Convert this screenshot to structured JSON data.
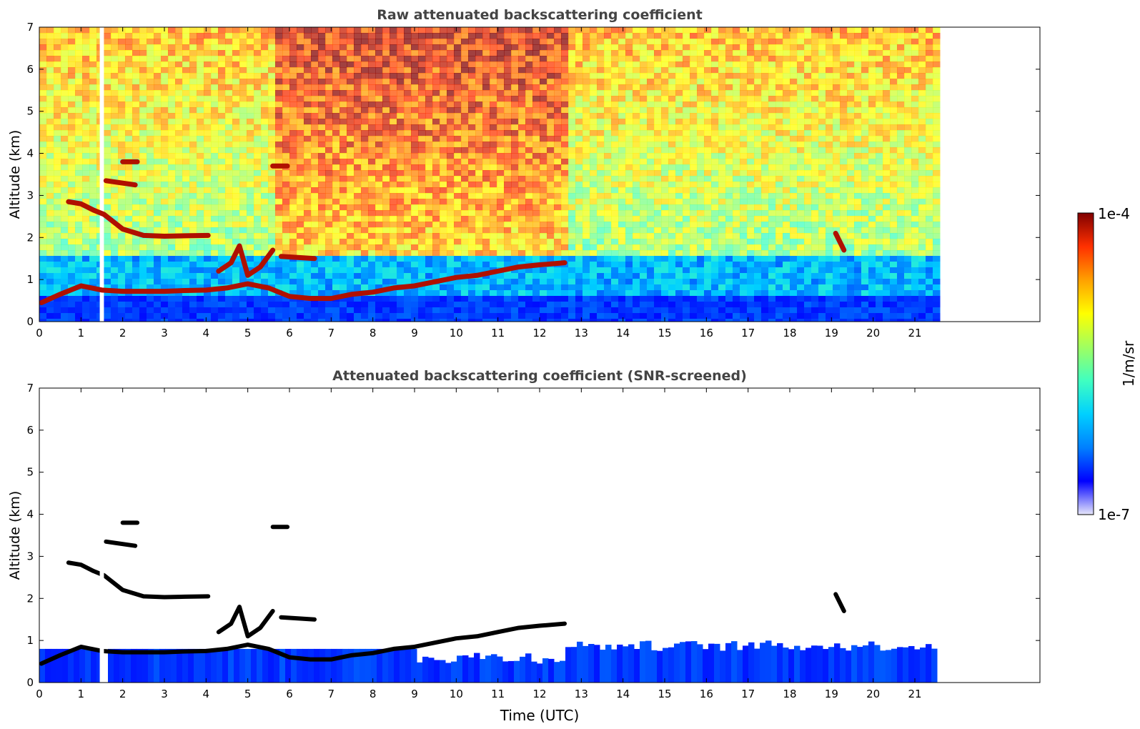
{
  "chart_data": [
    {
      "type": "heatmap",
      "title": "Raw attenuated backscattering coefficient",
      "xlabel": "",
      "ylabel": "Altitude (km)",
      "xlim": [
        0,
        24
      ],
      "ylim": [
        0,
        7
      ],
      "xticks": [
        "0",
        "1",
        "2",
        "3",
        "4",
        "5",
        "6",
        "7",
        "8",
        "9",
        "10",
        "11",
        "12",
        "13",
        "14",
        "15",
        "16",
        "17",
        "18",
        "19",
        "20",
        "21"
      ],
      "yticks": [
        "0",
        "1",
        "2",
        "3",
        "4",
        "5",
        "6",
        "7"
      ],
      "data_end_hour": 21.45,
      "gap_hours": [
        1.45,
        1.55
      ],
      "grid": false,
      "colormap": "jet",
      "layers": [
        {
          "x": [
            0.05,
            0.5,
            1.0,
            1.5,
            2.0,
            2.5,
            3.0,
            3.5,
            4.0,
            4.5,
            5.0,
            5.5,
            6.0,
            6.5,
            7.0,
            7.5,
            8.0,
            8.5,
            9.0,
            9.5,
            10.0,
            10.5,
            11.0,
            11.5,
            12.0,
            12.6
          ],
          "y": [
            0.45,
            0.65,
            0.85,
            0.75,
            0.72,
            0.72,
            0.72,
            0.74,
            0.75,
            0.8,
            0.9,
            0.8,
            0.6,
            0.55,
            0.55,
            0.65,
            0.7,
            0.8,
            0.85,
            0.95,
            1.05,
            1.1,
            1.2,
            1.3,
            1.35,
            1.4
          ]
        },
        {
          "x": [
            0.7,
            1.0,
            1.3,
            1.55,
            2.0,
            2.5,
            3.0,
            3.5,
            4.05
          ],
          "y": [
            2.85,
            2.8,
            2.65,
            2.55,
            2.2,
            2.05,
            2.03,
            2.04,
            2.05
          ]
        },
        {
          "x": [
            1.6,
            2.3
          ],
          "y": [
            3.35,
            3.25
          ]
        },
        {
          "x": [
            2.0,
            2.35
          ],
          "y": [
            3.8,
            3.8
          ]
        },
        {
          "x": [
            4.3,
            4.6,
            4.8,
            5.0,
            5.3,
            5.6
          ],
          "y": [
            1.2,
            1.4,
            1.8,
            1.1,
            1.3,
            1.7
          ]
        },
        {
          "x": [
            5.8,
            6.6
          ],
          "y": [
            1.55,
            1.5
          ]
        },
        {
          "x": [
            5.6,
            5.95
          ],
          "y": [
            3.7,
            3.7
          ]
        },
        {
          "x": [
            19.1,
            19.3
          ],
          "y": [
            2.1,
            1.7
          ]
        }
      ]
    },
    {
      "type": "heatmap",
      "title": "Attenuated backscattering coefficient (SNR-screened)",
      "xlabel": "Time (UTC)",
      "ylabel": "Altitude (km)",
      "xlim": [
        0,
        24
      ],
      "ylim": [
        0,
        7
      ],
      "xticks": [
        "0",
        "1",
        "2",
        "3",
        "4",
        "5",
        "6",
        "7",
        "8",
        "9",
        "10",
        "11",
        "12",
        "13",
        "14",
        "15",
        "16",
        "17",
        "18",
        "19",
        "20",
        "21"
      ],
      "yticks": [
        "0",
        "1",
        "2",
        "3",
        "4",
        "5",
        "6",
        "7"
      ],
      "data_end_hour": 21.45,
      "gap_hours": [
        1.45,
        1.55
      ],
      "grid": false,
      "colormap": "jet"
    }
  ],
  "colorbar": {
    "label": "1/m/sr",
    "max_label": "1e-4",
    "min_label": "1e-7",
    "colors": [
      "#e6e6fa",
      "#0000ff",
      "#0080ff",
      "#00d0ff",
      "#40ffc0",
      "#a0ff60",
      "#ffff00",
      "#ffa000",
      "#ff3000",
      "#800000"
    ]
  }
}
